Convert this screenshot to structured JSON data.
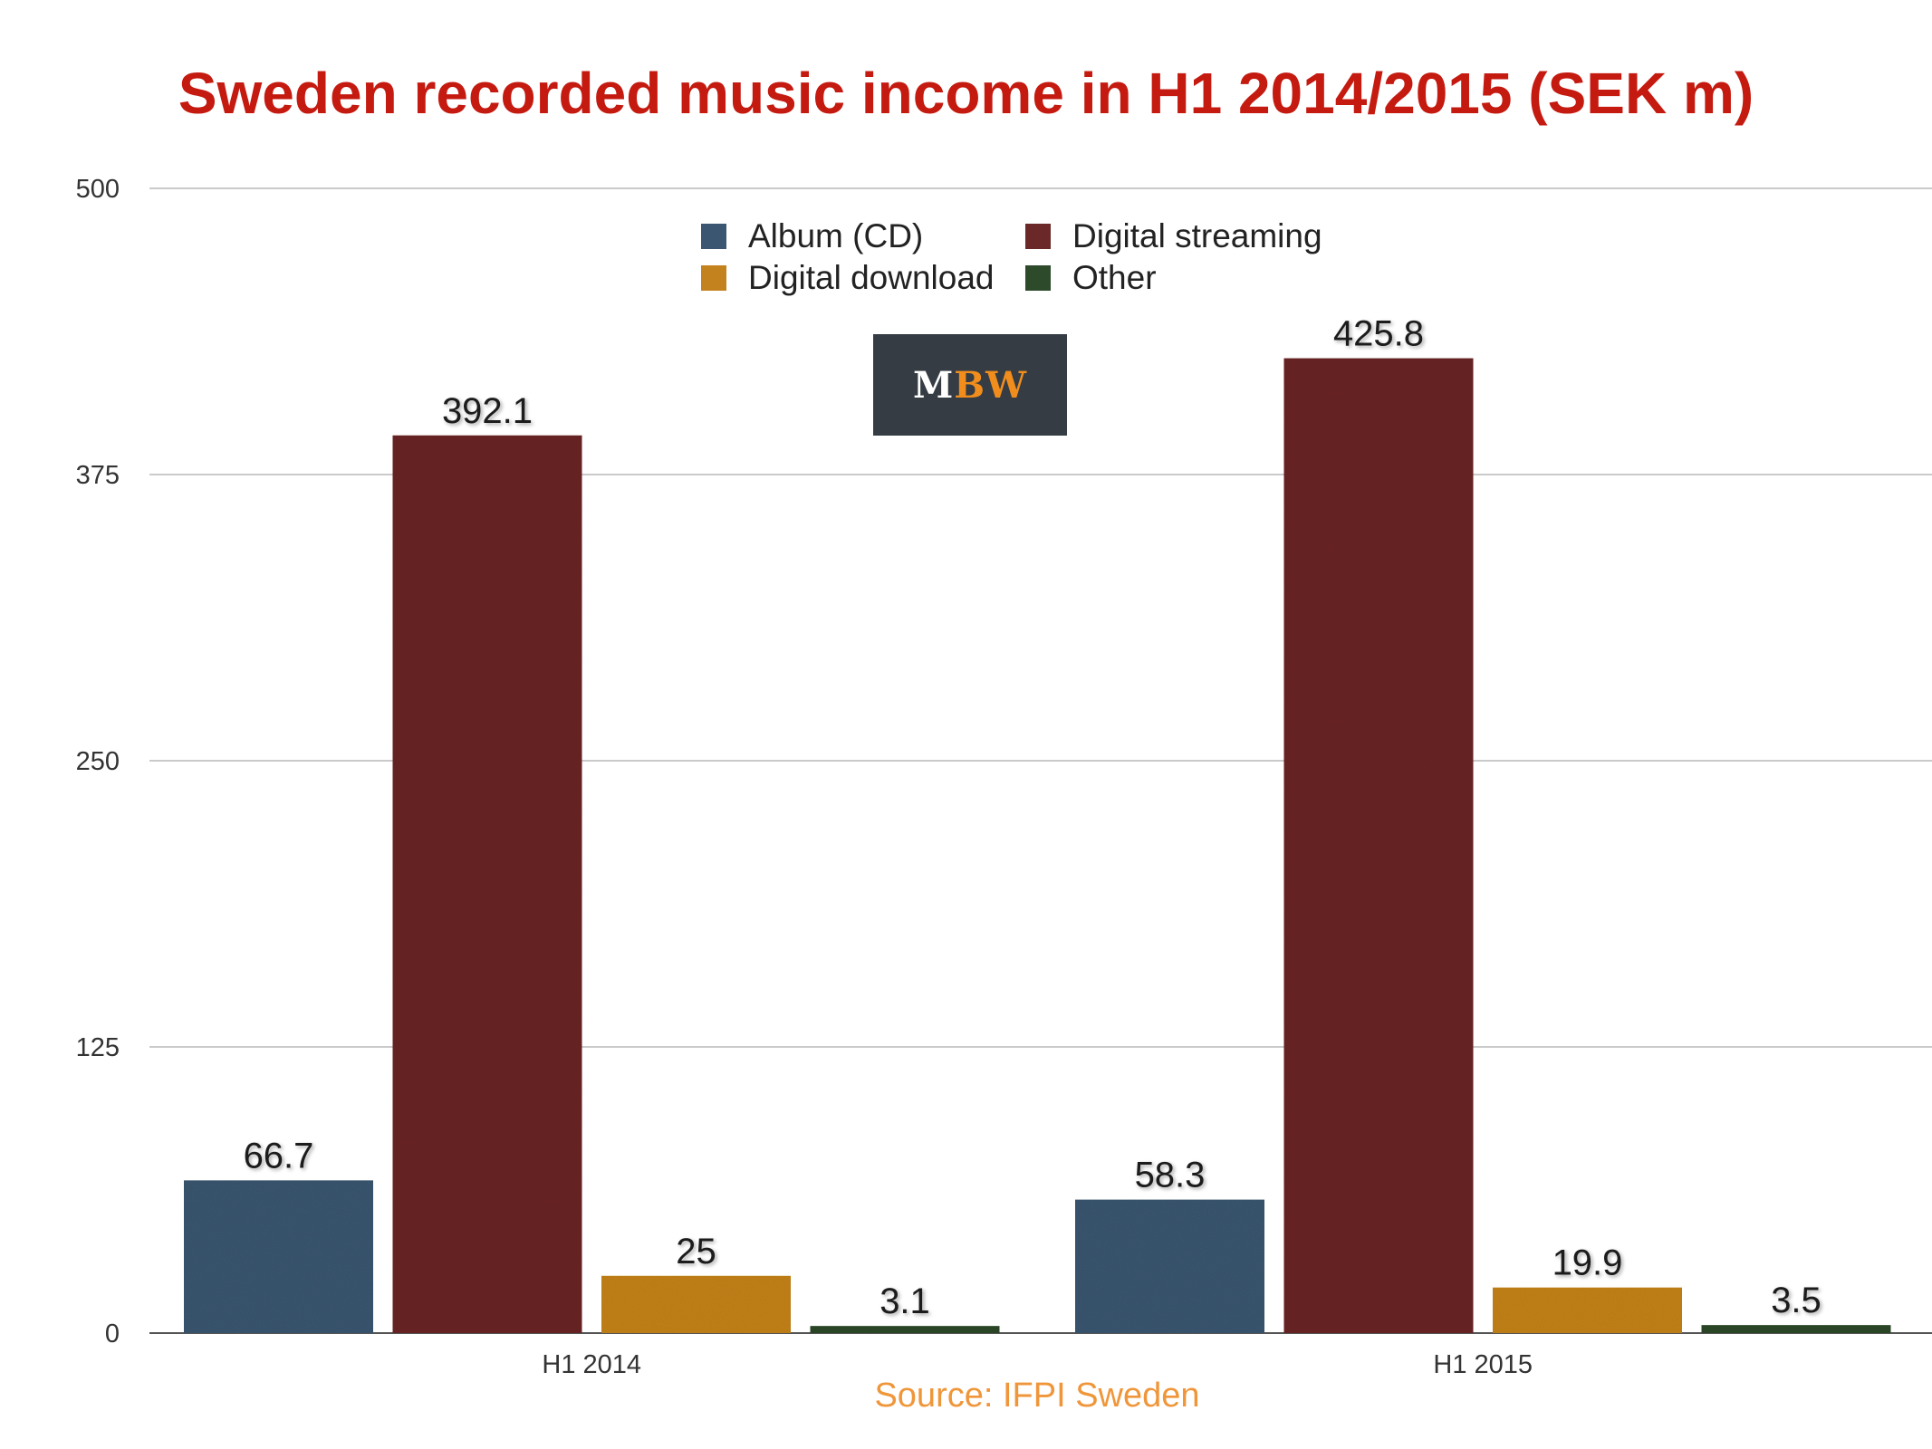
{
  "chart_data": {
    "type": "bar",
    "title": "Sweden recorded music income in H1 2014/2015 (SEK m)",
    "categories": [
      "H1 2014",
      "H1 2015"
    ],
    "series": [
      {
        "name": "Album (CD)",
        "values": [
          66.7,
          58.3
        ],
        "color": "#3b5670"
      },
      {
        "name": "Digital streaming",
        "values": [
          392.1,
          425.8
        ],
        "color": "#6b2828"
      },
      {
        "name": "Digital download",
        "values": [
          25,
          19.9
        ],
        "color": "#c4821f"
      },
      {
        "name": "Other",
        "values": [
          3.1,
          3.5
        ],
        "color": "#2d4a2b"
      }
    ],
    "data_labels": [
      [
        "66.7",
        "392.1",
        "25",
        "3.1"
      ],
      [
        "58.3",
        "425.8",
        "19.9",
        "3.5"
      ]
    ],
    "yticks": [
      "0",
      "125",
      "250",
      "375",
      "500"
    ],
    "ylim": [
      0,
      500
    ],
    "grid": true,
    "legend_position": "top-center",
    "xlabel": "",
    "ylabel": ""
  },
  "logo": {
    "text_m": "M",
    "text_bw": "BW"
  },
  "source": "Source: IFPI Sweden"
}
